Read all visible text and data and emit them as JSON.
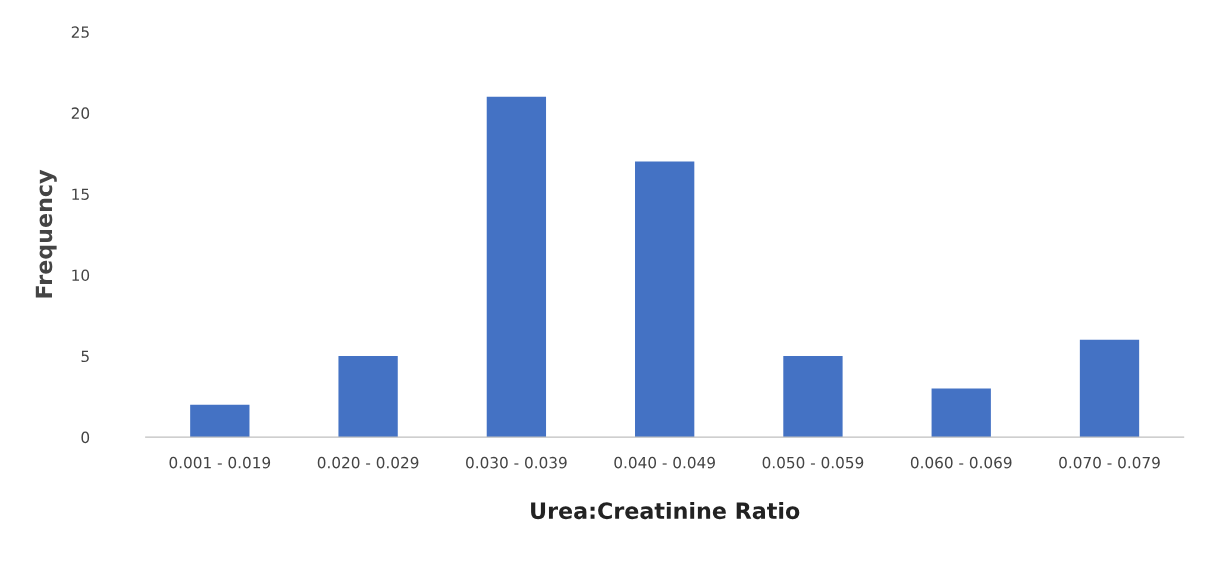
{
  "chart_data": {
    "type": "bar",
    "xlabel": "Urea:Creatinine Ratio",
    "ylabel": "Frequency",
    "categories": [
      "0.001 - 0.019",
      "0.020 - 0.029",
      "0.030 - 0.039",
      "0.040 - 0.049",
      "0.050 - 0.059",
      "0.060 - 0.069",
      "0.070 - 0.079"
    ],
    "values": [
      2,
      5,
      21,
      17,
      5,
      3,
      6
    ],
    "color": "#4472c4",
    "ylim": [
      0,
      25
    ],
    "yticks": [
      0,
      5,
      10,
      15,
      20,
      25
    ],
    "grid": false,
    "legend": false
  }
}
